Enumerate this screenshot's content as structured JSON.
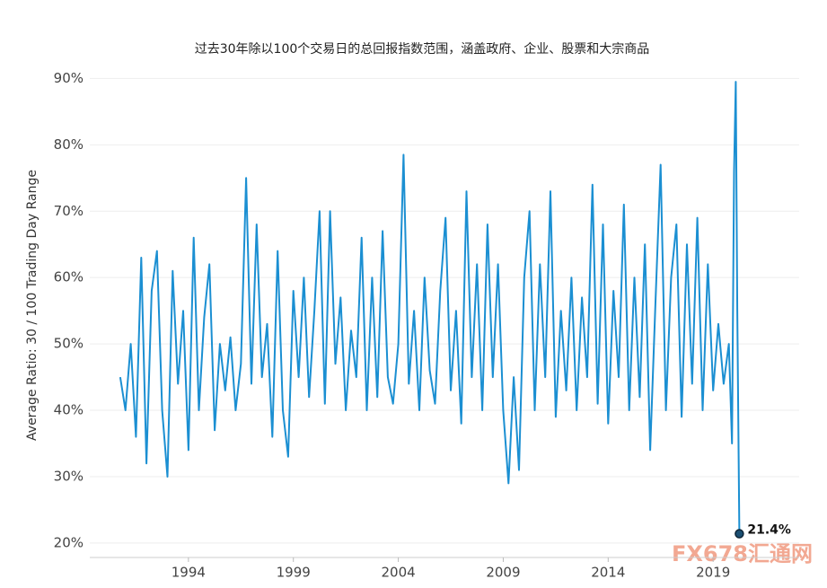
{
  "chart_data": {
    "type": "line",
    "title": "过去30年除以100个交易日的总回报指数范围，涵盖政府、企业、股票和大宗商品",
    "y_label": "Average Ratio: 30 /  100 Trading Day Range",
    "color": "#1b8fd2",
    "x": [
      1990.75,
      1991,
      1991.25,
      1991.5,
      1991.75,
      1992,
      1992.25,
      1992.5,
      1992.75,
      1993,
      1993.25,
      1993.5,
      1993.75,
      1994,
      1994.25,
      1994.5,
      1994.75,
      1995,
      1995.25,
      1995.5,
      1995.75,
      1996,
      1996.25,
      1996.5,
      1996.75,
      1997,
      1997.25,
      1997.5,
      1997.75,
      1998,
      1998.25,
      1998.5,
      1998.75,
      1999,
      1999.25,
      1999.5,
      1999.75,
      2000,
      2000.25,
      2000.5,
      2000.75,
      2001,
      2001.25,
      2001.5,
      2001.75,
      2002,
      2002.25,
      2002.5,
      2002.75,
      2003,
      2003.25,
      2003.5,
      2003.75,
      2004,
      2004.25,
      2004.5,
      2004.75,
      2005,
      2005.25,
      2005.5,
      2005.75,
      2006,
      2006.25,
      2006.5,
      2006.75,
      2007,
      2007.25,
      2007.5,
      2007.75,
      2008,
      2008.25,
      2008.5,
      2008.75,
      2009,
      2009.25,
      2009.5,
      2009.75,
      2010,
      2010.25,
      2010.5,
      2010.75,
      2011,
      2011.25,
      2011.5,
      2011.75,
      2012,
      2012.25,
      2012.5,
      2012.75,
      2013,
      2013.25,
      2013.5,
      2013.75,
      2014,
      2014.25,
      2014.5,
      2014.75,
      2015,
      2015.25,
      2015.5,
      2015.75,
      2016,
      2016.25,
      2016.5,
      2016.75,
      2017,
      2017.25,
      2017.5,
      2017.75,
      2018,
      2018.25,
      2018.5,
      2018.75,
      2019,
      2019.25,
      2019.5,
      2019.75,
      2019.9,
      2020.0,
      2020.08,
      2020.15,
      2020.25
    ],
    "values": [
      45,
      40,
      50,
      36,
      63,
      32,
      58,
      64,
      40,
      30,
      61,
      44,
      55,
      34,
      66,
      40,
      54,
      62,
      37,
      50,
      43,
      51,
      40,
      47,
      75,
      44,
      68,
      45,
      53,
      36,
      64,
      40,
      33,
      58,
      45,
      60,
      42,
      55,
      70,
      41,
      70,
      47,
      57,
      40,
      52,
      45,
      66,
      40,
      60,
      42,
      67,
      45,
      41,
      50,
      78.5,
      44,
      55,
      40,
      60,
      46,
      41,
      58,
      69,
      43,
      55,
      38,
      73,
      45,
      62,
      40,
      68,
      45,
      62,
      40,
      29,
      45,
      31,
      60,
      70,
      40,
      62,
      45,
      73,
      39,
      55,
      43,
      60,
      40,
      57,
      45,
      74,
      41,
      68,
      38,
      58,
      45,
      71,
      40,
      60,
      42,
      65,
      34,
      56,
      77,
      40,
      60,
      68,
      39,
      65,
      44,
      69,
      40,
      62,
      43,
      53,
      44,
      50,
      35,
      76,
      89.5,
      55,
      21.4
    ],
    "annotation": {
      "text": "21.4%",
      "x": 2020.25,
      "y": 21.4
    },
    "xlim": [
      1989.3,
      2023.1
    ],
    "xticks": [
      1994,
      1999,
      2004,
      2009,
      2014,
      2019
    ],
    "ylim": [
      18.5,
      91
    ],
    "yticks": [
      {
        "value": 20,
        "label": "20%"
      },
      {
        "value": 30,
        "label": "30%"
      },
      {
        "value": 40,
        "label": "40%"
      },
      {
        "value": 50,
        "label": "50%"
      },
      {
        "value": 60,
        "label": "60%"
      },
      {
        "value": 70,
        "label": "70%"
      },
      {
        "value": 80,
        "label": "80%"
      },
      {
        "value": 90,
        "label": "90%"
      }
    ],
    "grid": true,
    "watermark": "FX678汇通网"
  }
}
